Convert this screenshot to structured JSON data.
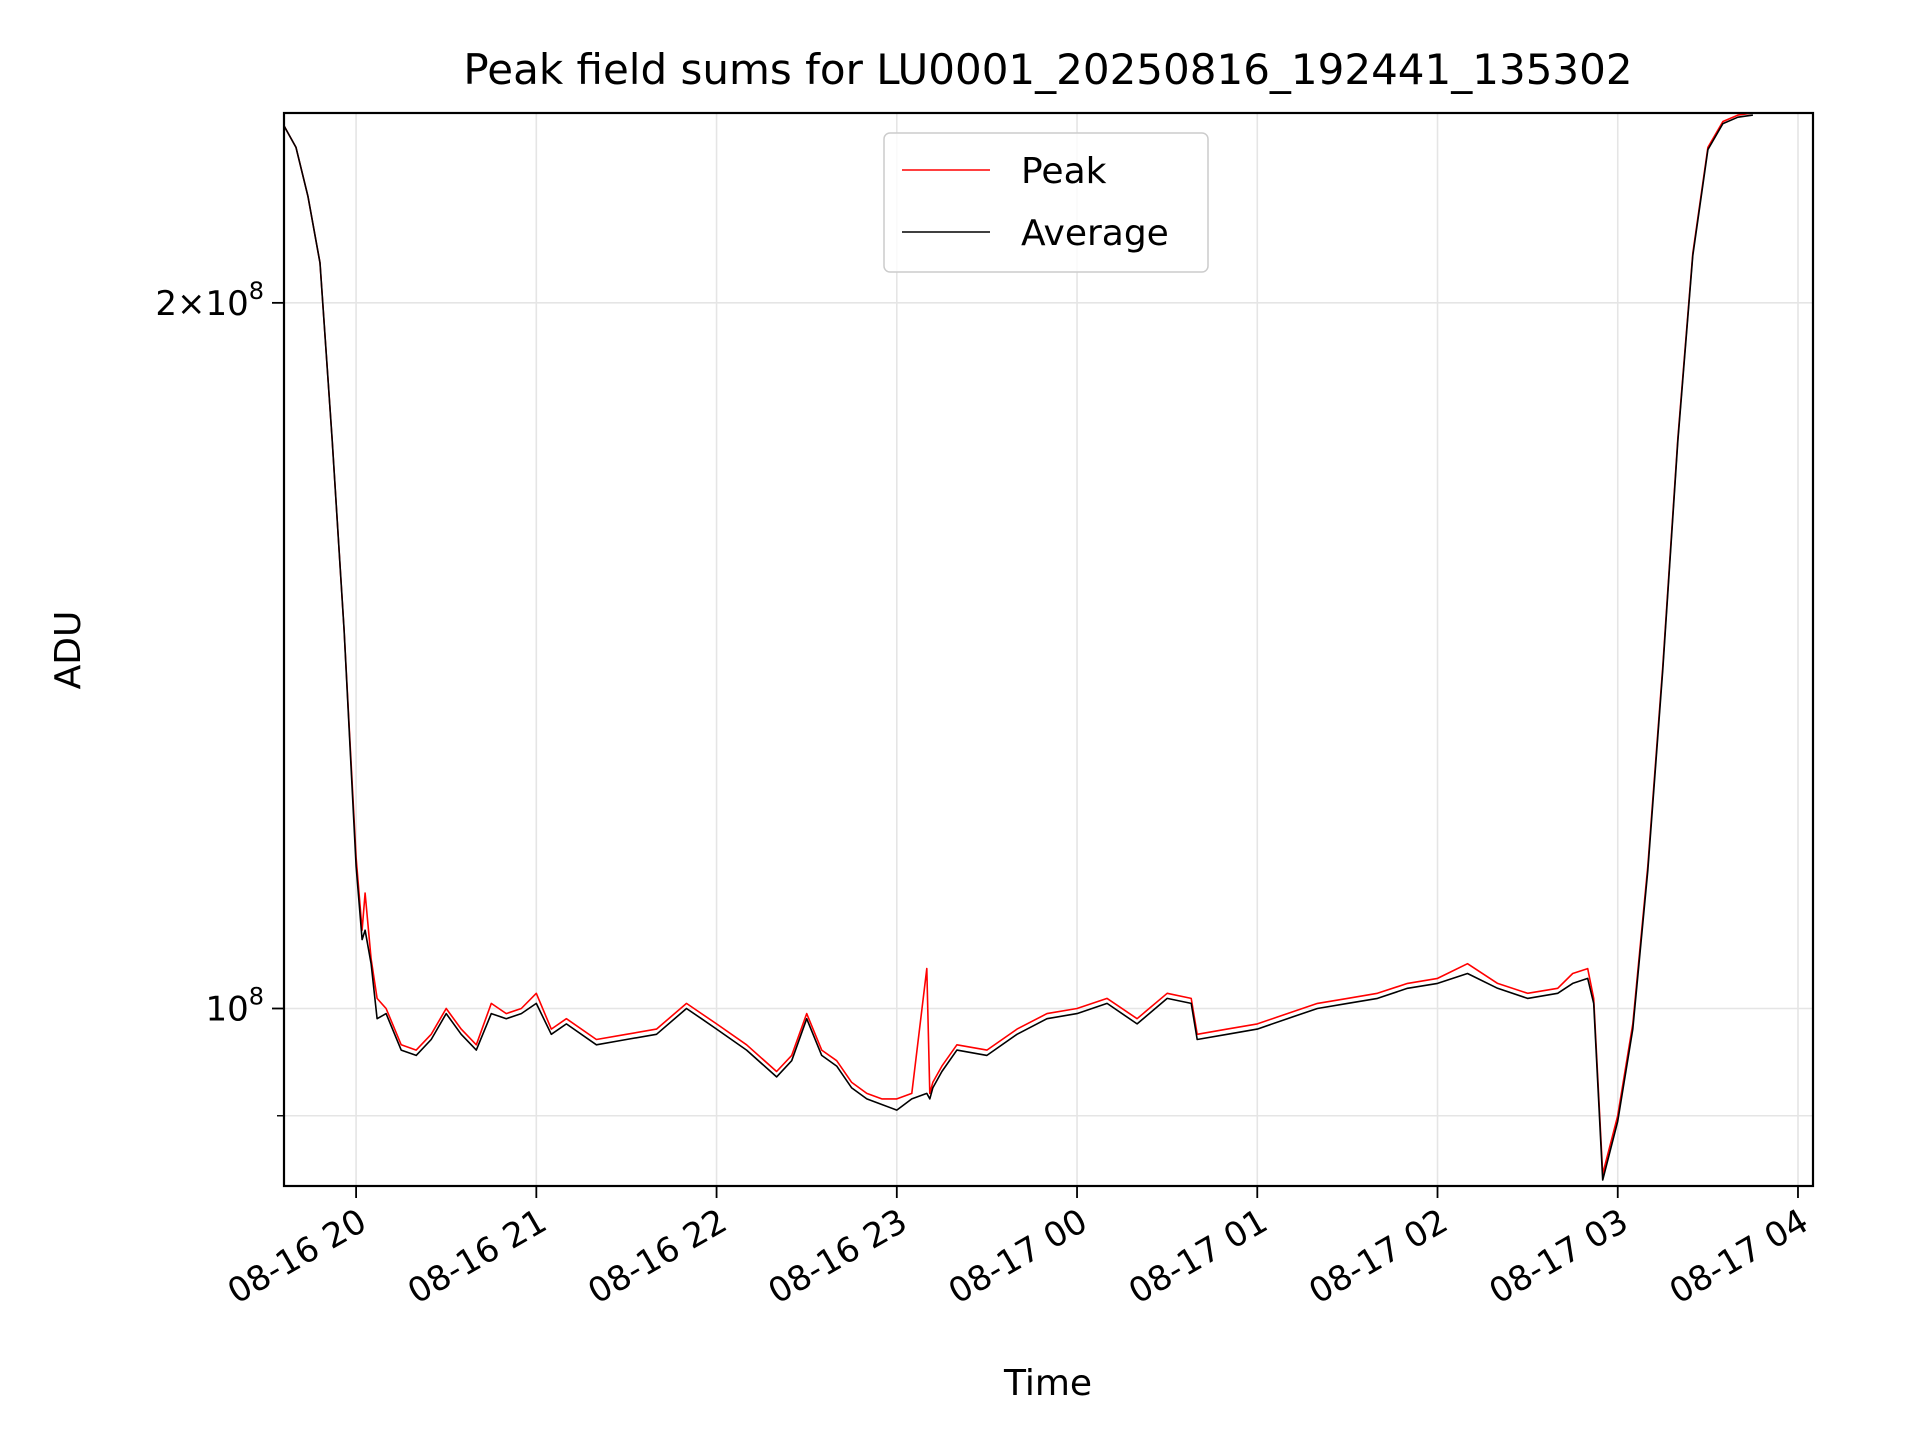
{
  "chart_data": {
    "type": "line",
    "title": "Peak field sums for LU0001_20250816_192441_135302",
    "xlabel": "Time",
    "ylabel": "ADU",
    "yscale": "log",
    "ylim": [
      84000000,
      241000000
    ],
    "xlim": [
      "2025-08-16T19:36",
      "2025-08-17T04:05"
    ],
    "grid": true,
    "legend_position": "top-center",
    "x_ticks": [
      "08-16 20",
      "08-16 21",
      "08-16 22",
      "08-16 23",
      "08-17 00",
      "08-17 01",
      "08-17 02",
      "08-17 03",
      "08-17 04"
    ],
    "x_tick_times": [
      "2025-08-16T20:00",
      "2025-08-16T21:00",
      "2025-08-16T22:00",
      "2025-08-16T23:00",
      "2025-08-17T00:00",
      "2025-08-17T01:00",
      "2025-08-17T02:00",
      "2025-08-17T03:00",
      "2025-08-17T04:00"
    ],
    "y_ticks": [
      {
        "value": 200000000,
        "label_base": "2×10",
        "label_exp": "8"
      },
      {
        "value": 100000000,
        "label_base": "10",
        "label_exp": "8"
      }
    ],
    "y_minor_ticks": [
      90000000
    ],
    "series": [
      {
        "name": "Peak",
        "color": "#ff0000",
        "x": [
          "2025-08-16T19:36",
          "2025-08-16T19:40",
          "2025-08-16T19:44",
          "2025-08-16T19:48",
          "2025-08-16T19:52",
          "2025-08-16T19:56",
          "2025-08-16T20:00",
          "2025-08-16T20:02",
          "2025-08-16T20:03",
          "2025-08-16T20:05",
          "2025-08-16T20:07",
          "2025-08-16T20:10",
          "2025-08-16T20:15",
          "2025-08-16T20:20",
          "2025-08-16T20:25",
          "2025-08-16T20:30",
          "2025-08-16T20:35",
          "2025-08-16T20:40",
          "2025-08-16T20:45",
          "2025-08-16T20:50",
          "2025-08-16T20:55",
          "2025-08-16T21:00",
          "2025-08-16T21:05",
          "2025-08-16T21:10",
          "2025-08-16T21:20",
          "2025-08-16T21:30",
          "2025-08-16T21:40",
          "2025-08-16T21:50",
          "2025-08-16T21:55",
          "2025-08-16T22:00",
          "2025-08-16T22:10",
          "2025-08-16T22:20",
          "2025-08-16T22:25",
          "2025-08-16T22:30",
          "2025-08-16T22:35",
          "2025-08-16T22:40",
          "2025-08-16T22:45",
          "2025-08-16T22:50",
          "2025-08-16T22:55",
          "2025-08-16T23:00",
          "2025-08-16T23:05",
          "2025-08-16T23:10",
          "2025-08-16T23:11",
          "2025-08-16T23:12",
          "2025-08-16T23:15",
          "2025-08-16T23:20",
          "2025-08-16T23:30",
          "2025-08-16T23:40",
          "2025-08-16T23:50",
          "2025-08-17T00:00",
          "2025-08-17T00:10",
          "2025-08-17T00:20",
          "2025-08-17T00:30",
          "2025-08-17T00:38",
          "2025-08-17T00:40",
          "2025-08-17T00:50",
          "2025-08-17T01:00",
          "2025-08-17T01:10",
          "2025-08-17T01:20",
          "2025-08-17T01:30",
          "2025-08-17T01:40",
          "2025-08-17T01:50",
          "2025-08-17T02:00",
          "2025-08-17T02:10",
          "2025-08-17T02:20",
          "2025-08-17T02:30",
          "2025-08-17T02:40",
          "2025-08-17T02:45",
          "2025-08-17T02:50",
          "2025-08-17T02:52",
          "2025-08-17T02:55",
          "2025-08-17T03:00",
          "2025-08-17T03:05",
          "2025-08-17T03:10",
          "2025-08-17T03:15",
          "2025-08-17T03:20",
          "2025-08-17T03:25",
          "2025-08-17T03:30",
          "2025-08-17T03:35",
          "2025-08-17T03:40",
          "2025-08-17T03:45"
        ],
        "values": [
          238000000,
          233000000,
          222000000,
          208000000,
          175000000,
          145000000,
          116000000,
          108000000,
          112000000,
          105000000,
          101000000,
          100000000,
          96500000,
          96000000,
          97500000,
          100000000,
          98000000,
          96500000,
          100500000,
          99500000,
          100000000,
          101500000,
          98000000,
          99000000,
          97000000,
          97500000,
          98000000,
          100500000,
          99500000,
          98500000,
          96500000,
          94000000,
          95500000,
          99500000,
          96000000,
          95000000,
          93000000,
          92000000,
          91500000,
          91500000,
          92000000,
          104000000,
          92000000,
          93000000,
          94500000,
          96500000,
          96000000,
          98000000,
          99500000,
          100000000,
          101000000,
          99000000,
          101500000,
          101000000,
          97500000,
          98000000,
          98500000,
          99500000,
          100500000,
          101000000,
          101500000,
          102500000,
          103000000,
          104500000,
          102500000,
          101500000,
          102000000,
          103500000,
          104000000,
          101000000,
          85000000,
          90000000,
          98500000,
          115000000,
          140000000,
          175000000,
          210000000,
          233000000,
          239000000,
          240500000,
          241000000
        ]
      },
      {
        "name": "Average",
        "color": "#000000",
        "x": [
          "2025-08-16T19:36",
          "2025-08-16T19:40",
          "2025-08-16T19:44",
          "2025-08-16T19:48",
          "2025-08-16T19:52",
          "2025-08-16T19:56",
          "2025-08-16T20:00",
          "2025-08-16T20:02",
          "2025-08-16T20:03",
          "2025-08-16T20:05",
          "2025-08-16T20:07",
          "2025-08-16T20:10",
          "2025-08-16T20:15",
          "2025-08-16T20:20",
          "2025-08-16T20:25",
          "2025-08-16T20:30",
          "2025-08-16T20:35",
          "2025-08-16T20:40",
          "2025-08-16T20:45",
          "2025-08-16T20:50",
          "2025-08-16T20:55",
          "2025-08-16T21:00",
          "2025-08-16T21:05",
          "2025-08-16T21:10",
          "2025-08-16T21:20",
          "2025-08-16T21:30",
          "2025-08-16T21:40",
          "2025-08-16T21:50",
          "2025-08-16T21:55",
          "2025-08-16T22:00",
          "2025-08-16T22:10",
          "2025-08-16T22:20",
          "2025-08-16T22:25",
          "2025-08-16T22:30",
          "2025-08-16T22:35",
          "2025-08-16T22:40",
          "2025-08-16T22:45",
          "2025-08-16T22:50",
          "2025-08-16T22:55",
          "2025-08-16T23:00",
          "2025-08-16T23:05",
          "2025-08-16T23:10",
          "2025-08-16T23:11",
          "2025-08-16T23:12",
          "2025-08-16T23:15",
          "2025-08-16T23:20",
          "2025-08-16T23:30",
          "2025-08-16T23:40",
          "2025-08-16T23:50",
          "2025-08-17T00:00",
          "2025-08-17T00:10",
          "2025-08-17T00:20",
          "2025-08-17T00:30",
          "2025-08-17T00:38",
          "2025-08-17T00:40",
          "2025-08-17T00:50",
          "2025-08-17T01:00",
          "2025-08-17T01:10",
          "2025-08-17T01:20",
          "2025-08-17T01:30",
          "2025-08-17T01:40",
          "2025-08-17T01:50",
          "2025-08-17T02:00",
          "2025-08-17T02:10",
          "2025-08-17T02:20",
          "2025-08-17T02:30",
          "2025-08-17T02:40",
          "2025-08-17T02:45",
          "2025-08-17T02:50",
          "2025-08-17T02:52",
          "2025-08-17T02:55",
          "2025-08-17T03:00",
          "2025-08-17T03:05",
          "2025-08-17T03:10",
          "2025-08-17T03:15",
          "2025-08-17T03:20",
          "2025-08-17T03:25",
          "2025-08-17T03:30",
          "2025-08-17T03:35",
          "2025-08-17T03:40",
          "2025-08-17T03:45"
        ],
        "values": [
          238000000,
          233000000,
          222000000,
          208000000,
          175000000,
          145000000,
          115000000,
          107000000,
          108000000,
          104500000,
          99000000,
          99500000,
          96000000,
          95500000,
          97000000,
          99500000,
          97500000,
          96000000,
          99500000,
          99000000,
          99500000,
          100500000,
          97500000,
          98500000,
          96500000,
          97000000,
          97500000,
          100000000,
          99000000,
          98000000,
          96000000,
          93500000,
          95000000,
          99000000,
          95500000,
          94500000,
          92500000,
          91500000,
          91000000,
          90500000,
          91500000,
          92000000,
          91500000,
          92500000,
          94000000,
          96000000,
          95500000,
          97500000,
          99000000,
          99500000,
          100500000,
          98500000,
          101000000,
          100500000,
          97000000,
          97500000,
          98000000,
          99000000,
          100000000,
          100500000,
          101000000,
          102000000,
          102500000,
          103500000,
          102000000,
          101000000,
          101500000,
          102500000,
          103000000,
          100500000,
          84500000,
          89500000,
          98000000,
          114500000,
          139500000,
          174500000,
          209500000,
          232500000,
          238500000,
          240000000,
          240500000
        ]
      }
    ]
  }
}
